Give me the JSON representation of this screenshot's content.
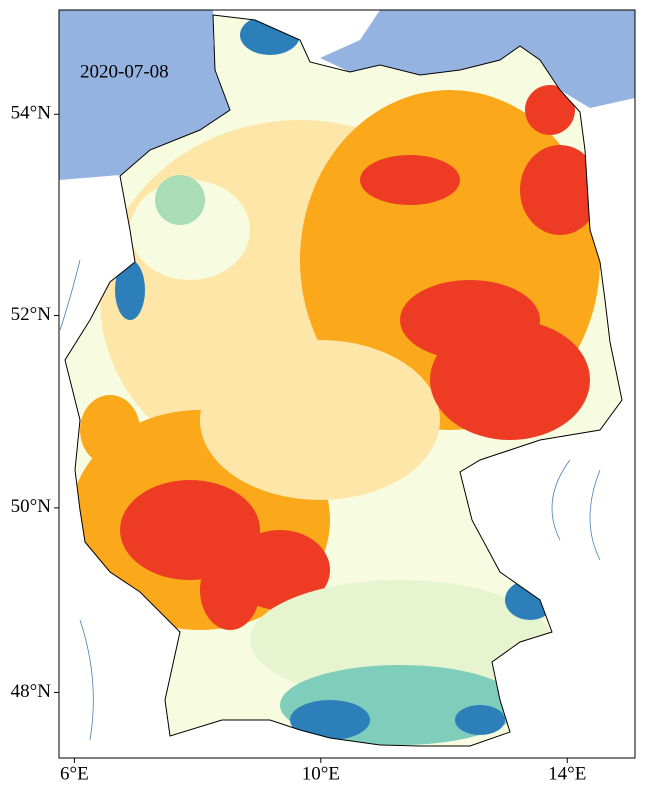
{
  "map": {
    "type": "map",
    "projection": "mercator",
    "title": "2020-07-08",
    "xlim": [
      5.75,
      15.1
    ],
    "ylim": [
      47.27,
      55.0
    ],
    "xticks": [
      {
        "value": 6,
        "label": "6°E"
      },
      {
        "value": 10,
        "label": "10°E"
      },
      {
        "value": 14,
        "label": "14°E"
      }
    ],
    "yticks": [
      {
        "value": 48,
        "label": "48°N"
      },
      {
        "value": 50,
        "label": "50°N"
      },
      {
        "value": 52,
        "label": "52°N"
      },
      {
        "value": 54,
        "label": "54°N"
      }
    ]
  }
}
